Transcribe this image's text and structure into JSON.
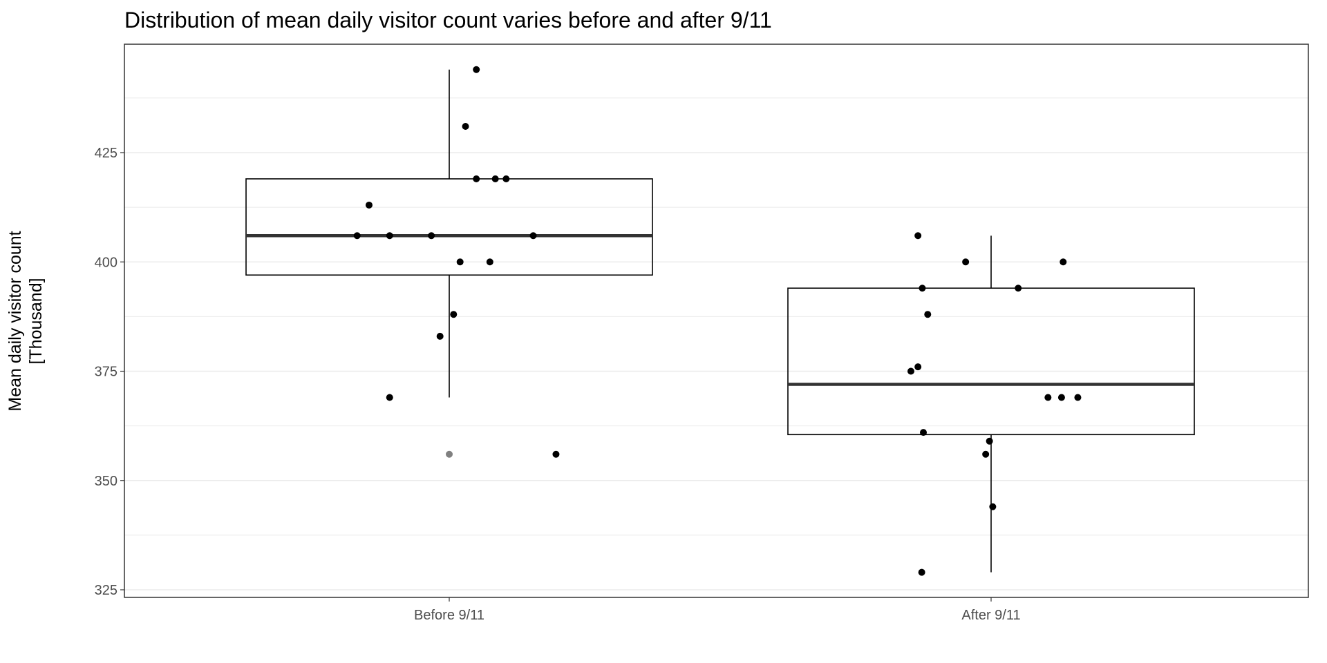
{
  "chart_data": {
    "type": "boxplot",
    "title": "Distribution of mean daily visitor count varies before and after 9/11",
    "ylabel_line1": "Mean daily visitor count",
    "ylabel_line2": "[Thousand]",
    "xlabel": "",
    "categories": [
      "Before 9/11",
      "After 9/11"
    ],
    "ylim": [
      323.5,
      450
    ],
    "yticks": [
      325,
      350,
      375,
      400,
      425
    ],
    "grid": true,
    "boxes": [
      {
        "category": "Before 9/11",
        "whisker_low": 369,
        "q1": 397,
        "median": 406,
        "q3": 419,
        "whisker_high": 444
      },
      {
        "category": "After 9/11",
        "whisker_low": 329,
        "q1": 360.5,
        "median": 372,
        "q3": 394,
        "whisker_high": 406
      }
    ],
    "outliers": [
      {
        "category": "Before 9/11",
        "value": 356
      }
    ],
    "points": [
      {
        "category": "Before 9/11",
        "value": 444,
        "jitter": 0.05
      },
      {
        "category": "Before 9/11",
        "value": 431,
        "jitter": 0.03
      },
      {
        "category": "Before 9/11",
        "value": 419,
        "jitter": 0.05
      },
      {
        "category": "Before 9/11",
        "value": 419,
        "jitter": 0.085
      },
      {
        "category": "Before 9/11",
        "value": 419,
        "jitter": 0.105
      },
      {
        "category": "Before 9/11",
        "value": 413,
        "jitter": -0.148
      },
      {
        "category": "Before 9/11",
        "value": 406,
        "jitter": -0.17
      },
      {
        "category": "Before 9/11",
        "value": 406,
        "jitter": -0.11
      },
      {
        "category": "Before 9/11",
        "value": 406,
        "jitter": -0.033
      },
      {
        "category": "Before 9/11",
        "value": 406,
        "jitter": 0.155
      },
      {
        "category": "Before 9/11",
        "value": 400,
        "jitter": 0.02
      },
      {
        "category": "Before 9/11",
        "value": 400,
        "jitter": 0.075
      },
      {
        "category": "Before 9/11",
        "value": 388,
        "jitter": 0.008
      },
      {
        "category": "Before 9/11",
        "value": 383,
        "jitter": -0.017
      },
      {
        "category": "Before 9/11",
        "value": 369,
        "jitter": -0.11
      },
      {
        "category": "Before 9/11",
        "value": 356,
        "jitter": 0.197
      },
      {
        "category": "After 9/11",
        "value": 406,
        "jitter": -0.135
      },
      {
        "category": "After 9/11",
        "value": 400,
        "jitter": -0.047
      },
      {
        "category": "After 9/11",
        "value": 400,
        "jitter": 0.133
      },
      {
        "category": "After 9/11",
        "value": 394,
        "jitter": -0.127
      },
      {
        "category": "After 9/11",
        "value": 394,
        "jitter": 0.05
      },
      {
        "category": "After 9/11",
        "value": 388,
        "jitter": -0.117
      },
      {
        "category": "After 9/11",
        "value": 376,
        "jitter": -0.135
      },
      {
        "category": "After 9/11",
        "value": 375,
        "jitter": -0.148
      },
      {
        "category": "After 9/11",
        "value": 369,
        "jitter": 0.105
      },
      {
        "category": "After 9/11",
        "value": 369,
        "jitter": 0.13
      },
      {
        "category": "After 9/11",
        "value": 369,
        "jitter": 0.16
      },
      {
        "category": "After 9/11",
        "value": 361,
        "jitter": -0.125
      },
      {
        "category": "After 9/11",
        "value": 359,
        "jitter": -0.003
      },
      {
        "category": "After 9/11",
        "value": 356,
        "jitter": -0.01
      },
      {
        "category": "After 9/11",
        "value": 344,
        "jitter": 0.003
      },
      {
        "category": "After 9/11",
        "value": 329,
        "jitter": -0.128
      }
    ],
    "colors": {
      "panel_border": "#333333",
      "grid": "#ebebeb",
      "box_line": "#000000",
      "median": "#333333",
      "point": "#000000",
      "outlier": "#808080",
      "tick_label": "#4d4d4d"
    }
  }
}
